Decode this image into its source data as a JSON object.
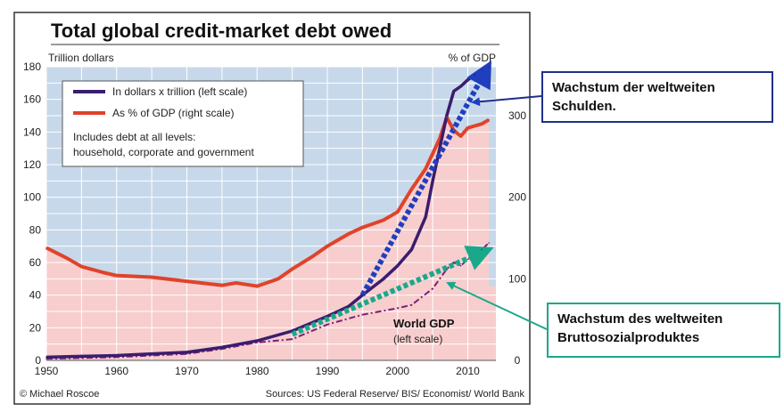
{
  "chart_data": {
    "type": "line",
    "title": "Total global credit-market debt owed",
    "left_axis_label": "Trillion dollars",
    "right_axis_label": "% of GDP",
    "xlim": [
      1950,
      2014
    ],
    "ylim_left": [
      0,
      180
    ],
    "ylim_right": [
      0,
      360
    ],
    "x_ticks": [
      "1950",
      "1960",
      "1970",
      "1980",
      "1990",
      "2000",
      "2010"
    ],
    "y_ticks_left": [
      "0",
      "20",
      "40",
      "60",
      "80",
      "100",
      "120",
      "140",
      "160",
      "180"
    ],
    "y_ticks_right": [
      "0",
      "100",
      "200",
      "300"
    ],
    "legend": {
      "items": [
        {
          "label": "In dollars x trillion (left scale)",
          "color": "#3a1d6e"
        },
        {
          "label": "As % of GDP (right scale)",
          "color": "#e0432a"
        }
      ],
      "note_line1": "Includes debt at all levels:",
      "note_line2": "household, corporate and government",
      "placement": "top-left"
    },
    "series": [
      {
        "name": "In dollars x trillion (left scale)",
        "axis": "left",
        "color": "#3a1d6e",
        "x": [
          1950,
          1955,
          1960,
          1965,
          1970,
          1975,
          1980,
          1985,
          1990,
          1993,
          1995,
          1998,
          2000,
          2002,
          2004,
          2005,
          2006,
          2007,
          2008,
          2009,
          2010,
          2011,
          2012,
          2013
        ],
        "y": [
          2,
          2.5,
          3,
          4,
          5,
          8,
          12,
          18,
          27,
          33,
          40,
          50,
          58,
          68,
          88,
          110,
          130,
          150,
          165,
          168,
          172,
          175,
          178,
          180
        ]
      },
      {
        "name": "As % of GDP (right scale)",
        "axis": "right",
        "color": "#e0432a",
        "x": [
          1950,
          1953,
          1955,
          1958,
          1960,
          1965,
          1970,
          1975,
          1977,
          1980,
          1983,
          1985,
          1988,
          1990,
          1993,
          1995,
          1998,
          2000,
          2002,
          2004,
          2006,
          2007,
          2008,
          2009,
          2010,
          2012,
          2013
        ],
        "y": [
          138,
          125,
          115,
          108,
          104,
          102,
          97,
          92,
          95,
          91,
          100,
          112,
          128,
          140,
          155,
          163,
          172,
          182,
          210,
          235,
          272,
          298,
          282,
          275,
          285,
          290,
          295
        ]
      },
      {
        "name": "World GDP",
        "axis": "left",
        "color": "#7b1f7a",
        "x": [
          1950,
          1955,
          1960,
          1965,
          1970,
          1975,
          1980,
          1985,
          1990,
          1995,
          2000,
          2002,
          2005,
          2007,
          2008,
          2009,
          2010,
          2012,
          2013
        ],
        "y": [
          1,
          1.5,
          2,
          3,
          4,
          7,
          11,
          13,
          22,
          28,
          32,
          34,
          44,
          56,
          60,
          58,
          62,
          68,
          72
        ]
      }
    ],
    "annotation": {
      "title": "World GDP",
      "subtitle": "(left scale)"
    },
    "trend_arrows": [
      {
        "color": "#1f3fbf",
        "from": [
          1995,
          40
        ],
        "to": [
          2013,
          181
        ]
      },
      {
        "color": "#1aa88a",
        "from": [
          1985,
          16
        ],
        "to": [
          2013,
          68
        ]
      }
    ],
    "credit": "© Michael Roscoe",
    "sources": "Sources: US Federal Reserve/ BIS/ Economist/ World Bank"
  },
  "callouts": {
    "debt_line1": "Wachstum der weltweiten",
    "debt_line2": "Schulden.",
    "gdp_line1": "Wachstum des weltweiten",
    "gdp_line2": "Bruttosozialproduktes"
  },
  "colors": {
    "plot_blue": "#c7d8ea",
    "plot_pink": "#f7cdcd",
    "grid": "#ffffff",
    "panel_bg": "#ffffff",
    "frame": "#333333",
    "debt_arrow": "#1f3fbf",
    "gdp_arrow": "#1aa88a"
  }
}
